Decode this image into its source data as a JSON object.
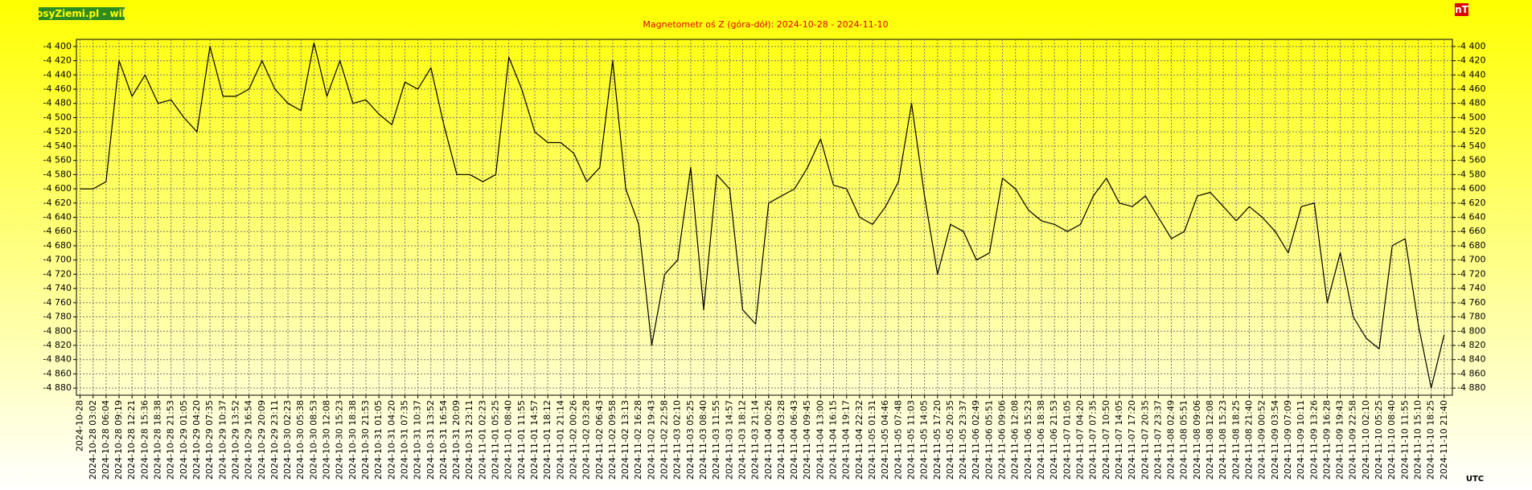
{
  "chart_data": {
    "type": "line",
    "brand": "LosyZiemi.pl - wibi",
    "title": "Magnetometr oś Z (góra-dół): 2024-10-28 - 2024-11-10",
    "unit": "nT",
    "timezone": "UTC",
    "color": "#000000",
    "grid": true,
    "categories": [
      "2024-10-28",
      "2024-10-28 03:02",
      "2024-10-28 06:04",
      "2024-10-28 09:19",
      "2024-10-28 12:21",
      "2024-10-28 15:36",
      "2024-10-28 18:38",
      "2024-10-28 21:53",
      "2024-10-29 01:05",
      "2024-10-29 04:20",
      "2024-10-29 07:35",
      "2024-10-29 10:37",
      "2024-10-29 13:52",
      "2024-10-29 16:54",
      "2024-10-29 20:09",
      "2024-10-29 23:11",
      "2024-10-30 02:23",
      "2024-10-30 05:38",
      "2024-10-30 08:53",
      "2024-10-30 12:08",
      "2024-10-30 15:23",
      "2024-10-30 18:38",
      "2024-10-30 21:53",
      "2024-10-31 01:05",
      "2024-10-31 04:20",
      "2024-10-31 07:35",
      "2024-10-31 10:37",
      "2024-10-31 13:52",
      "2024-10-31 16:54",
      "2024-10-31 20:09",
      "2024-10-31 23:11",
      "2024-11-01 02:23",
      "2024-11-01 05:25",
      "2024-11-01 08:40",
      "2024-11-01 11:55",
      "2024-11-01 14:57",
      "2024-11-01 18:12",
      "2024-11-01 21:14",
      "2024-11-02 00:26",
      "2024-11-02 03:28",
      "2024-11-02 06:43",
      "2024-11-02 09:58",
      "2024-11-02 13:13",
      "2024-11-02 16:28",
      "2024-11-02 19:43",
      "2024-11-02 22:58",
      "2024-11-03 02:10",
      "2024-11-03 05:25",
      "2024-11-03 08:40",
      "2024-11-03 11:55",
      "2024-11-03 14:57",
      "2024-11-03 18:12",
      "2024-11-03 21:14",
      "2024-11-04 00:26",
      "2024-11-04 03:28",
      "2024-11-04 06:43",
      "2024-11-04 09:45",
      "2024-11-04 13:00",
      "2024-11-04 16:15",
      "2024-11-04 19:17",
      "2024-11-04 22:32",
      "2024-11-05 01:31",
      "2024-11-05 04:46",
      "2024-11-05 07:48",
      "2024-11-05 11:03",
      "2024-11-05 14:05",
      "2024-11-05 17:20",
      "2024-11-05 20:35",
      "2024-11-05 23:37",
      "2024-11-06 02:49",
      "2024-11-06 05:51",
      "2024-11-06 09:06",
      "2024-11-06 12:08",
      "2024-11-06 15:23",
      "2024-11-06 18:38",
      "2024-11-06 21:53",
      "2024-11-07 01:05",
      "2024-11-07 04:20",
      "2024-11-07 07:35",
      "2024-11-07 10:50",
      "2024-11-07 14:05",
      "2024-11-07 17:20",
      "2024-11-07 20:35",
      "2024-11-07 23:37",
      "2024-11-08 02:49",
      "2024-11-08 05:51",
      "2024-11-08 09:06",
      "2024-11-08 12:08",
      "2024-11-08 15:23",
      "2024-11-08 18:25",
      "2024-11-08 21:40",
      "2024-11-09 00:52",
      "2024-11-09 03:54",
      "2024-11-09 07:09",
      "2024-11-09 10:11",
      "2024-11-09 13:26",
      "2024-11-09 16:28",
      "2024-11-09 19:43",
      "2024-11-09 22:58",
      "2024-11-10 02:10",
      "2024-11-10 05:25",
      "2024-11-10 08:40",
      "2024-11-10 11:55",
      "2024-11-10 15:10",
      "2024-11-10 18:25",
      "2024-11-10 21:40"
    ],
    "values": [
      -4600,
      -4600,
      -4590,
      -4420,
      -4470,
      -4440,
      -4480,
      -4475,
      -4500,
      -4520,
      -4400,
      -4470,
      -4470,
      -4460,
      -4420,
      -4460,
      -4480,
      -4490,
      -4395,
      -4470,
      -4420,
      -4480,
      -4475,
      -4495,
      -4510,
      -4450,
      -4460,
      -4430,
      -4510,
      -4580,
      -4580,
      -4590,
      -4580,
      -4415,
      -4460,
      -4520,
      -4535,
      -4535,
      -4550,
      -4590,
      -4570,
      -4420,
      -4600,
      -4650,
      -4820,
      -4720,
      -4700,
      -4570,
      -4770,
      -4580,
      -4600,
      -4770,
      -4790,
      -4620,
      -4610,
      -4600,
      -4570,
      -4530,
      -4595,
      -4600,
      -4640,
      -4650,
      -4625,
      -4590,
      -4480,
      -4610,
      -4720,
      -4650,
      -4660,
      -4700,
      -4690,
      -4585,
      -4600,
      -4630,
      -4645,
      -4650,
      -4660,
      -4650,
      -4610,
      -4585,
      -4620,
      -4625,
      -4610,
      -4640,
      -4670,
      -4660,
      -4610,
      -4605,
      -4625,
      -4645,
      -4625,
      -4640,
      -4660,
      -4690,
      -4625,
      -4620,
      -4760,
      -4690,
      -4780,
      -4810,
      -4825,
      -4680,
      -4670,
      -4790,
      -4880,
      -4805
    ],
    "ylim": [
      -4890,
      -4390
    ],
    "yticks": [
      {
        "value": -4400,
        "label": "-4 400"
      },
      {
        "value": -4420,
        "label": "-4 420"
      },
      {
        "value": -4440,
        "label": "-4 440"
      },
      {
        "value": -4460,
        "label": "-4 460"
      },
      {
        "value": -4480,
        "label": "-4 480"
      },
      {
        "value": -4500,
        "label": "-4 500"
      },
      {
        "value": -4520,
        "label": "-4 520"
      },
      {
        "value": -4540,
        "label": "-4 540"
      },
      {
        "value": -4560,
        "label": "-4 560"
      },
      {
        "value": -4580,
        "label": "-4 580"
      },
      {
        "value": -4600,
        "label": "-4 600"
      },
      {
        "value": -4620,
        "label": "-4 620"
      },
      {
        "value": -4640,
        "label": "-4 640"
      },
      {
        "value": -4660,
        "label": "-4 660"
      },
      {
        "value": -4680,
        "label": "-4 680"
      },
      {
        "value": -4700,
        "label": "-4 700"
      },
      {
        "value": -4720,
        "label": "-4 720"
      },
      {
        "value": -4740,
        "label": "-4 740"
      },
      {
        "value": -4760,
        "label": "-4 760"
      },
      {
        "value": -4780,
        "label": "-4 780"
      },
      {
        "value": -4800,
        "label": "-4 800"
      },
      {
        "value": -4820,
        "label": "-4 820"
      },
      {
        "value": -4840,
        "label": "-4 840"
      },
      {
        "value": -4860,
        "label": "-4 860"
      },
      {
        "value": -4880,
        "label": "-4 880"
      }
    ]
  }
}
